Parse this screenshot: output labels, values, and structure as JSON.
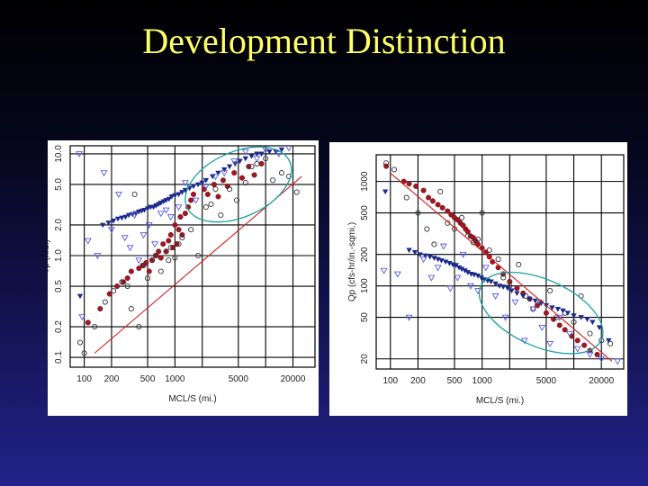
{
  "slide": {
    "title": "Development Distinction"
  },
  "chart_data": [
    {
      "type": "scatter",
      "title": "",
      "xlabel": "MCL/S (mi.)",
      "ylabel": "Tp (hrs.)",
      "xscale": "log",
      "yscale": "log",
      "xlim": [
        70,
        35000
      ],
      "ylim": [
        0.08,
        12
      ],
      "x_ticks": [
        100,
        200,
        500,
        1000,
        5000,
        20000
      ],
      "x_tick_labels": [
        "100",
        "200",
        "500",
        "1000",
        "5000",
        "20000"
      ],
      "y_ticks": [
        0.1,
        0.2,
        0.5,
        1.0,
        2.0,
        5.0,
        10.0
      ],
      "y_tick_labels": [
        "0.1",
        "0.2",
        "0.5",
        "1.0",
        "2.0",
        "5.0",
        "10.0"
      ],
      "x_grid": [
        100,
        200,
        500,
        1000,
        2000,
        5000,
        10000,
        20000
      ],
      "y_grid": [
        0.1,
        0.2,
        0.5,
        1.0,
        2.0,
        5.0,
        10.0
      ],
      "colors": {
        "filled-circle": "#a01622",
        "open-circle": "#333333",
        "filled-triangle": "#1c2a8c",
        "open-triangle": "#5a5ae6",
        "trend-line": "#d42020",
        "ellipse": "#1aa0a0"
      },
      "series": [
        {
          "name": "filled-circle",
          "marker": "filled-circle",
          "color": "#a01622",
          "x": [
            110,
            150,
            190,
            230,
            270,
            300,
            330,
            400,
            440,
            480,
            520,
            560,
            610,
            660,
            700,
            740,
            800,
            850,
            900,
            950,
            1000,
            1050,
            1100,
            1150,
            1200,
            1300,
            1400,
            1500,
            1600,
            2100,
            2300,
            2700,
            3000,
            3400,
            3800,
            4500,
            5500,
            6500,
            7500,
            9000
          ],
          "y": [
            0.22,
            0.3,
            0.42,
            0.5,
            0.55,
            0.6,
            0.7,
            0.75,
            0.8,
            0.85,
            0.7,
            0.9,
            1.0,
            1.1,
            0.95,
            1.3,
            1.1,
            1.4,
            1.6,
            1.2,
            2.0,
            1.3,
            1.8,
            2.4,
            1.6,
            2.6,
            3.0,
            3.5,
            4.0,
            4.5,
            4.0,
            5.0,
            3.8,
            5.5,
            4.8,
            6.5,
            5.8,
            7.5,
            6.2,
            8.0
          ]
        },
        {
          "name": "open-circle",
          "marker": "open-circle",
          "color": "#333333",
          "x": [
            90,
            100,
            130,
            170,
            210,
            260,
            300,
            330,
            360,
            400,
            450,
            500,
            560,
            620,
            700,
            800,
            850,
            900,
            1000,
            1100,
            1200,
            1500,
            1800,
            2200,
            2500,
            2800,
            3200,
            4000,
            4800,
            6000,
            7000,
            8000,
            10000,
            12000,
            15000,
            18000,
            22000
          ],
          "y": [
            0.14,
            0.11,
            0.2,
            0.35,
            0.45,
            0.55,
            0.5,
            0.3,
            4.0,
            0.2,
            0.8,
            0.6,
            0.9,
            1.0,
            0.7,
            1.1,
            0.9,
            1.2,
            0.95,
            1.3,
            1.5,
            1.8,
            1.0,
            3.0,
            3.2,
            4.5,
            2.5,
            4.5,
            3.5,
            5.2,
            7.5,
            8.0,
            9.0,
            5.5,
            6.5,
            6.0,
            4.2
          ]
        },
        {
          "name": "filled-triangle",
          "marker": "filled-triangle",
          "color": "#1c2a8c",
          "x": [
            90,
            160,
            185,
            210,
            235,
            260,
            285,
            310,
            340,
            370,
            400,
            430,
            460,
            500,
            540,
            580,
            620,
            660,
            700,
            750,
            800,
            860,
            920,
            1000,
            1100,
            1200,
            1300,
            1450,
            1600,
            1800,
            2000,
            2200,
            2600,
            3000,
            3500,
            4000,
            4600,
            5200,
            6000,
            7000,
            8000,
            9000,
            11000,
            13000,
            15000
          ],
          "y": [
            0.4,
            2.0,
            2.1,
            2.2,
            2.3,
            2.35,
            2.4,
            2.5,
            2.55,
            2.6,
            2.7,
            2.75,
            2.8,
            2.9,
            3.0,
            3.0,
            3.1,
            3.2,
            3.3,
            3.4,
            3.5,
            3.6,
            3.8,
            3.9,
            4.0,
            4.2,
            4.4,
            4.6,
            4.8,
            5.0,
            5.2,
            5.5,
            6.0,
            6.5,
            7.0,
            7.5,
            8.0,
            8.5,
            9.0,
            9.5,
            10.0,
            10.0,
            10.5,
            10.5,
            11.0
          ]
        },
        {
          "name": "open-triangle",
          "marker": "open-triangle",
          "color": "#5a5ae6",
          "x": [
            88,
            95,
            110,
            140,
            165,
            200,
            240,
            280,
            320,
            360,
            400,
            450,
            520,
            600,
            700,
            800,
            900,
            1100,
            1300,
            1700,
            2200,
            2800,
            3500,
            4500,
            6000,
            8000,
            10000,
            14000,
            18000
          ],
          "y": [
            10.0,
            0.25,
            1.4,
            1.0,
            6.5,
            1.8,
            4.0,
            1.5,
            1.2,
            2.5,
            0.9,
            1.6,
            2.0,
            1.3,
            2.6,
            2.8,
            2.4,
            3.0,
            5.2,
            3.5,
            4.8,
            6.0,
            6.5,
            8.5,
            10.5,
            9.0,
            11.0,
            10.0,
            11.5
          ]
        }
      ],
      "trend_line": {
        "x": [
          130,
          25000
        ],
        "y": [
          0.11,
          6.0
        ]
      },
      "highlight_ellipse": {
        "label": "",
        "x_center": 5000,
        "y_center": 5.0,
        "x_span_decades": 0.62,
        "y_span_decades": 0.32,
        "tilt": "rising"
      }
    },
    {
      "type": "scatter",
      "title": "",
      "xlabel": "MCL/S (mi.)",
      "ylabel": "Qp (cfs-hr/in.-sqmi.)",
      "xscale": "log",
      "yscale": "log",
      "xlim": [
        70,
        35000
      ],
      "ylim": [
        16,
        1800
      ],
      "x_ticks": [
        100,
        200,
        500,
        1000,
        5000,
        20000
      ],
      "x_tick_labels": [
        "100",
        "200",
        "500",
        "1000",
        "5000",
        "20000"
      ],
      "y_ticks": [
        20,
        50,
        100,
        200,
        500,
        1000
      ],
      "y_tick_labels": [
        "20",
        "50",
        "100",
        "200",
        "500",
        "1000"
      ],
      "x_grid": [
        100,
        200,
        500,
        1000,
        2000,
        5000,
        10000,
        20000
      ],
      "y_grid": [
        20,
        50,
        100,
        200,
        500,
        1000
      ],
      "colors": {
        "filled-circle": "#a01622",
        "open-circle": "#333333",
        "filled-triangle": "#1c2a8c",
        "open-triangle": "#5a5ae6",
        "trend-line": "#d42020",
        "ellipse": "#1aa0a0"
      },
      "series": [
        {
          "name": "filled-circle",
          "marker": "filled-circle",
          "color": "#a01622",
          "x": [
            90,
            140,
            160,
            190,
            230,
            260,
            290,
            330,
            370,
            420,
            460,
            500,
            540,
            580,
            620,
            660,
            700,
            750,
            800,
            850,
            900,
            1000,
            1100,
            1200,
            1300,
            1500,
            1700,
            2000,
            2400,
            2800,
            3300,
            4000,
            5000,
            6000,
            7000,
            8000,
            9500,
            11000,
            13000,
            15000,
            18000
          ],
          "y": [
            1400,
            1000,
            950,
            900,
            820,
            700,
            650,
            600,
            560,
            520,
            480,
            450,
            430,
            400,
            380,
            350,
            330,
            300,
            290,
            270,
            250,
            230,
            210,
            190,
            170,
            150,
            130,
            110,
            95,
            85,
            75,
            65,
            55,
            48,
            42,
            38,
            33,
            30,
            27,
            24,
            22
          ]
        },
        {
          "name": "open-circle",
          "marker": "open-circle",
          "color": "#333333",
          "x": [
            90,
            110,
            150,
            200,
            250,
            300,
            350,
            420,
            500,
            600,
            700,
            800,
            900,
            1000,
            1200,
            1500,
            1700,
            2000,
            2500,
            3000,
            3600,
            4300,
            5500,
            6500,
            8000,
            10000,
            12000,
            15000,
            20000,
            25000
          ],
          "y": [
            1500,
            1300,
            700,
            500,
            350,
            250,
            800,
            400,
            350,
            450,
            300,
            260,
            280,
            500,
            220,
            180,
            120,
            100,
            160,
            80,
            60,
            70,
            90,
            50,
            55,
            45,
            80,
            35,
            30,
            28
          ]
        },
        {
          "name": "filled-triangle",
          "marker": "filled-triangle",
          "color": "#1c2a8c",
          "x": [
            88,
            160,
            185,
            210,
            240,
            270,
            300,
            330,
            360,
            400,
            440,
            480,
            520,
            560,
            600,
            650,
            700,
            760,
            820,
            900,
            980,
            1060,
            1150,
            1250,
            1400,
            1550,
            1700,
            1900,
            2100,
            2400,
            2800,
            3300,
            3800,
            4400,
            5000,
            5800,
            6700,
            7600,
            8600,
            10000,
            12000,
            14000,
            16000,
            19000,
            24000
          ],
          "y": [
            800,
            220,
            210,
            200,
            195,
            190,
            185,
            180,
            175,
            170,
            165,
            160,
            158,
            150,
            145,
            140,
            135,
            130,
            128,
            125,
            120,
            115,
            112,
            110,
            105,
            100,
            98,
            95,
            90,
            85,
            80,
            75,
            72,
            68,
            65,
            62,
            60,
            58,
            55,
            52,
            50,
            48,
            45,
            40,
            30
          ]
        },
        {
          "name": "open-triangle",
          "marker": "open-triangle",
          "color": "#5a5ae6",
          "x": [
            85,
            120,
            160,
            230,
            280,
            330,
            380,
            450,
            540,
            620,
            750,
            900,
            1100,
            1400,
            1800,
            2300,
            2900,
            3600,
            4500,
            5500,
            7000,
            9000,
            11000,
            15000,
            20000,
            30000
          ],
          "y": [
            140,
            130,
            50,
            180,
            120,
            150,
            240,
            95,
            120,
            200,
            100,
            90,
            150,
            80,
            50,
            70,
            30,
            60,
            40,
            28,
            50,
            35,
            25,
            22,
            20,
            19
          ]
        }
      ],
      "trend_line": {
        "x": [
          100,
          26000
        ],
        "y": [
          1200,
          19
        ]
      },
      "highlight_ellipse": {
        "label": "",
        "x_center": 4400,
        "y_center": 55,
        "x_span_decades": 0.72,
        "y_span_decades": 0.32,
        "tilt": "falling"
      }
    }
  ]
}
